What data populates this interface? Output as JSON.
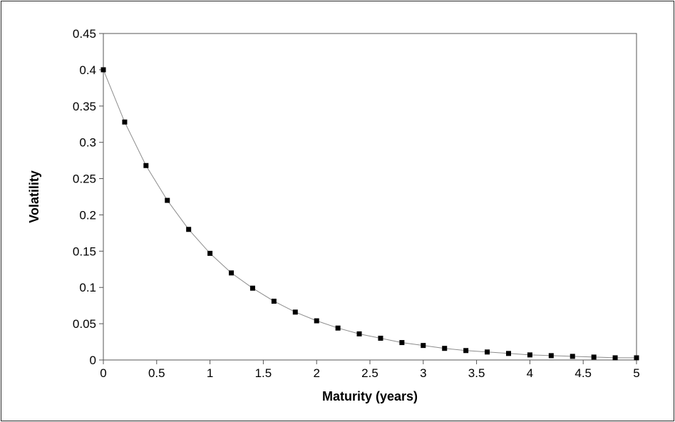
{
  "chart_data": {
    "type": "scatter",
    "title": "",
    "xlabel": "Maturity (years)",
    "ylabel": "Volatility",
    "xlim": [
      0,
      5
    ],
    "ylim": [
      0,
      0.45
    ],
    "xticks": [
      0,
      0.5,
      1,
      1.5,
      2,
      2.5,
      3,
      3.5,
      4,
      4.5,
      5
    ],
    "xtick_labels": [
      "0",
      "0.5",
      "1",
      "1.5",
      "2",
      "2.5",
      "3",
      "3.5",
      "4",
      "4.5",
      "5"
    ],
    "yticks": [
      0,
      0.05,
      0.1,
      0.15,
      0.2,
      0.25,
      0.3,
      0.35,
      0.4,
      0.45
    ],
    "ytick_labels": [
      "0",
      "0.05",
      "0.1",
      "0.15",
      "0.2",
      "0.25",
      "0.3",
      "0.35",
      "0.4",
      "0.45"
    ],
    "grid": false,
    "legend": "none",
    "line_color": "#8c8c8c",
    "marker_color": "#000000",
    "marker": "square",
    "series": [
      {
        "x": [
          0,
          0.2,
          0.4,
          0.6,
          0.8,
          1.0,
          1.2,
          1.4,
          1.6,
          1.8,
          2.0,
          2.2,
          2.4,
          2.6,
          2.8,
          3.0,
          3.2,
          3.4,
          3.6,
          3.8,
          4.0,
          4.2,
          4.4,
          4.6,
          4.8,
          5.0
        ],
        "y": [
          0.4,
          0.328,
          0.268,
          0.22,
          0.18,
          0.147,
          0.12,
          0.099,
          0.081,
          0.066,
          0.054,
          0.044,
          0.036,
          0.03,
          0.024,
          0.02,
          0.016,
          0.013,
          0.011,
          0.009,
          0.007,
          0.006,
          0.005,
          0.004,
          0.003,
          0.003
        ]
      }
    ]
  }
}
